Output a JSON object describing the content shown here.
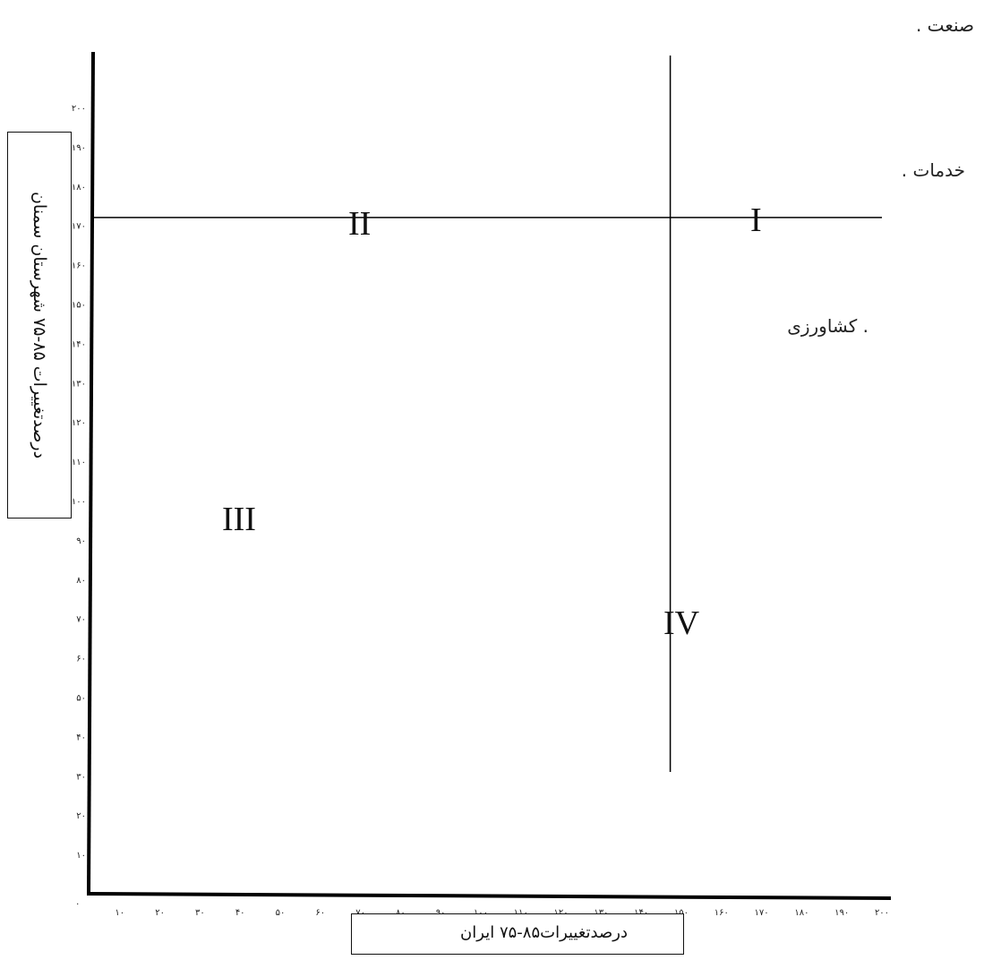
{
  "sectors": {
    "industry": "صنعت .",
    "services": "خدمات .",
    "agriculture": ". کشاورزی"
  },
  "chart_data": {
    "type": "scatter",
    "xlabel": "درصدتغییرات۸۵-۷۵ ایران",
    "ylabel": "درصدتغییرات ۸۵-۷۵ شهرستان سمنان",
    "x_ticks": [
      "۱۰",
      "۲۰",
      "۳۰",
      "۴۰",
      "۵۰",
      "۶۰",
      "۷۰",
      "۸۰",
      "۹۰",
      "۱۰۰",
      "۱۱۰",
      "۱۲۰",
      "۱۳۰",
      "۱۴۰",
      "۱۵۰",
      "۱۶۰",
      "۱۷۰",
      "۱۸۰",
      "۱۹۰",
      "۲۰۰"
    ],
    "y_ticks": [
      "۱۰",
      "۲۰",
      "۳۰",
      "۴۰",
      "۵۰",
      "۶۰",
      "۷۰",
      "۸۰",
      "۹۰",
      "۱۰۰",
      "۱۱۰",
      "۱۲۰",
      "۱۳۰",
      "۱۴۰",
      "۱۵۰",
      "۱۶۰",
      "۱۷۰",
      "۱۸۰",
      "۱۹۰",
      "۲۰۰"
    ],
    "origin_label": "۰",
    "xlim": [
      0,
      200
    ],
    "ylim": [
      0,
      200
    ],
    "reference_lines": {
      "vertical_x": 145,
      "horizontal_y": 172
    },
    "quadrants": [
      "I",
      "II",
      "III",
      "IV"
    ],
    "grid": false
  }
}
